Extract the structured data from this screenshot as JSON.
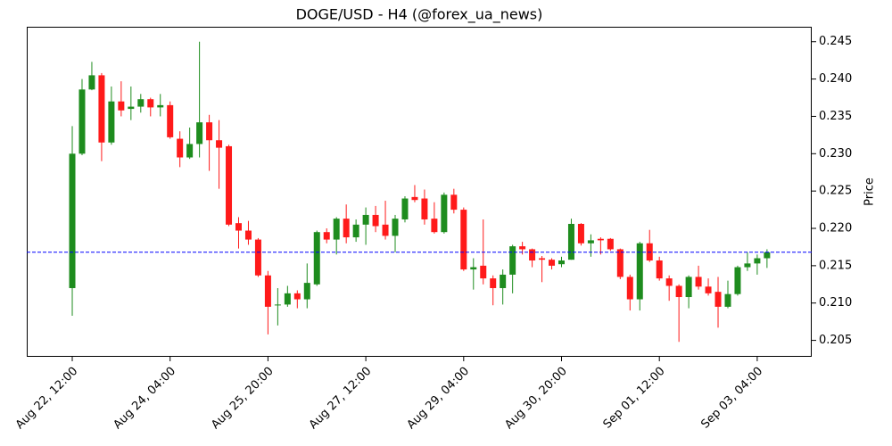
{
  "chart_data": {
    "type": "candlestick",
    "title": "DOGE/USD - H4 (@forex_ua_news)",
    "y_label": "Price",
    "categories": [
      "Aug 22, 12:00",
      null,
      null,
      null,
      null,
      null,
      null,
      null,
      null,
      null,
      "Aug 24, 04:00",
      null,
      null,
      null,
      null,
      null,
      null,
      null,
      null,
      null,
      "Aug 25, 20:00",
      null,
      null,
      null,
      null,
      null,
      null,
      null,
      null,
      null,
      "Aug 27, 12:00",
      null,
      null,
      null,
      null,
      null,
      null,
      null,
      null,
      null,
      "Aug 29, 04:00",
      null,
      null,
      null,
      null,
      null,
      null,
      null,
      null,
      null,
      "Aug 30, 20:00",
      null,
      null,
      null,
      null,
      null,
      null,
      null,
      null,
      null,
      "Sep 01, 12:00",
      null,
      null,
      null,
      null,
      null,
      null,
      null,
      null,
      null,
      "Sep 03, 04:00",
      null
    ],
    "open": [
      0.212,
      0.23,
      0.2386,
      0.2405,
      0.2315,
      0.237,
      0.236,
      0.2363,
      0.2373,
      0.2362,
      0.2365,
      0.232,
      0.2295,
      0.2313,
      0.2342,
      0.2318,
      0.231,
      0.2207,
      0.2197,
      0.2185,
      0.2137,
      0.2097,
      0.2098,
      0.2113,
      0.2105,
      0.2125,
      0.2195,
      0.2185,
      0.2213,
      0.2188,
      0.2205,
      0.2218,
      0.2205,
      0.219,
      0.2212,
      0.2242,
      0.224,
      0.2213,
      0.2195,
      0.2245,
      0.2225,
      0.2145,
      0.215,
      0.2133,
      0.212,
      0.2138,
      0.2176,
      0.2172,
      0.216,
      0.2158,
      0.2152,
      0.2158,
      0.2206,
      0.218,
      0.2186,
      0.2186,
      0.2172,
      0.2135,
      0.2105,
      0.218,
      0.2157,
      0.2133,
      0.2123,
      0.2108,
      0.2135,
      0.2122,
      0.2115,
      0.2095,
      0.2112,
      0.2148,
      0.2153,
      0.216
    ],
    "high": [
      0.2337,
      0.24,
      0.2423,
      0.2408,
      0.239,
      0.2397,
      0.239,
      0.238,
      0.2375,
      0.238,
      0.237,
      0.233,
      0.2335,
      0.245,
      0.2352,
      0.2345,
      0.2312,
      0.2215,
      0.221,
      0.2187,
      0.2143,
      0.212,
      0.2123,
      0.2117,
      0.2153,
      0.2197,
      0.22,
      0.2215,
      0.2232,
      0.2212,
      0.2228,
      0.223,
      0.2237,
      0.2218,
      0.2243,
      0.2258,
      0.2252,
      0.2235,
      0.2248,
      0.2253,
      0.2228,
      0.216,
      0.2212,
      0.2137,
      0.2145,
      0.2178,
      0.2182,
      0.2173,
      0.2163,
      0.216,
      0.2162,
      0.2213,
      0.2207,
      0.2192,
      0.2188,
      0.2187,
      0.2173,
      0.2138,
      0.2182,
      0.2198,
      0.2162,
      0.2137,
      0.2125,
      0.2137,
      0.215,
      0.2133,
      0.2135,
      0.213,
      0.215,
      0.2168,
      0.2165,
      0.2172
    ],
    "low": [
      0.2083,
      0.2298,
      0.2385,
      0.229,
      0.2312,
      0.235,
      0.2345,
      0.2355,
      0.235,
      0.235,
      0.232,
      0.2282,
      0.2293,
      0.2295,
      0.2277,
      0.2253,
      0.2203,
      0.2173,
      0.2178,
      0.2135,
      0.2058,
      0.207,
      0.2095,
      0.2093,
      0.2093,
      0.2123,
      0.218,
      0.2165,
      0.218,
      0.2182,
      0.2178,
      0.2195,
      0.2185,
      0.2168,
      0.2208,
      0.2235,
      0.2205,
      0.2193,
      0.2193,
      0.222,
      0.2143,
      0.2118,
      0.2125,
      0.2097,
      0.2098,
      0.2113,
      0.2165,
      0.2148,
      0.2128,
      0.2145,
      0.2148,
      0.2158,
      0.2177,
      0.2162,
      0.2165,
      0.217,
      0.2132,
      0.209,
      0.209,
      0.2155,
      0.213,
      0.2103,
      0.2048,
      0.2093,
      0.2118,
      0.211,
      0.2067,
      0.2093,
      0.211,
      0.2143,
      0.2138,
      0.2147
    ],
    "close": [
      0.23,
      0.2386,
      0.2405,
      0.2315,
      0.237,
      0.2358,
      0.2363,
      0.2373,
      0.2362,
      0.2365,
      0.2322,
      0.2295,
      0.2313,
      0.2342,
      0.2318,
      0.2308,
      0.2205,
      0.2197,
      0.2185,
      0.2137,
      0.2095,
      0.2098,
      0.2113,
      0.2105,
      0.2127,
      0.2195,
      0.2185,
      0.2213,
      0.2188,
      0.2205,
      0.2218,
      0.2203,
      0.219,
      0.2213,
      0.224,
      0.2238,
      0.2212,
      0.2195,
      0.2245,
      0.2225,
      0.2145,
      0.2148,
      0.2133,
      0.212,
      0.2138,
      0.2176,
      0.2172,
      0.2157,
      0.2158,
      0.215,
      0.2157,
      0.2206,
      0.218,
      0.2184,
      0.2184,
      0.2172,
      0.2135,
      0.2105,
      0.218,
      0.2157,
      0.2133,
      0.2123,
      0.2108,
      0.2135,
      0.2122,
      0.2113,
      0.2095,
      0.2112,
      0.2148,
      0.2153,
      0.216,
      0.2168
    ],
    "up_color": "#1e8c1e",
    "down_color": "#ff1a1a",
    "hline": 0.2168,
    "hline_color": "#0000ff",
    "xlim": [
      -4.65,
      75.57
    ],
    "ylim": [
      0.2028,
      0.247
    ],
    "yticks": [
      0.205,
      {
        "value": 0.21,
        "label": "0.210"
      },
      0.215,
      {
        "value": 0.22,
        "label": "0.220"
      },
      0.225,
      {
        "value": 0.23,
        "label": "0.230"
      },
      0.235,
      {
        "value": 0.24,
        "label": "0.240"
      },
      0.245
    ]
  }
}
